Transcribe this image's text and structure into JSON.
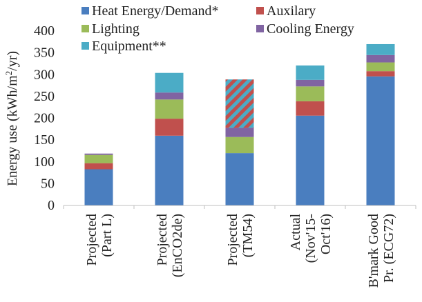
{
  "chart_data": {
    "type": "bar",
    "stacked": true,
    "ylabel_prefix": "Energy use (kWh/m",
    "ylabel_sup": "2",
    "ylabel_suffix": "/yr)",
    "ylim": [
      0,
      400
    ],
    "yticks": [
      0,
      50,
      100,
      150,
      200,
      250,
      300,
      350,
      400
    ],
    "categories": [
      [
        "Projected",
        "(Part L)"
      ],
      [
        "Projected",
        "(EnCO2de)"
      ],
      [
        "Projected",
        "(TM54)"
      ],
      [
        "Actual",
        "(Nov'15-",
        "Oct'16)"
      ],
      [
        "B'mark Good",
        "Pr. (ECG72)"
      ]
    ],
    "series": [
      {
        "name": "Heat Energy/Demand*",
        "color": "#4a7ebf",
        "values": [
          83,
          160,
          120,
          206,
          296
        ]
      },
      {
        "name": "Auxilary",
        "color": "#c0504d",
        "values": [
          14,
          39,
          0,
          33,
          12
        ]
      },
      {
        "name": "Lighting",
        "color": "#9bbb59",
        "values": [
          19,
          44,
          37,
          34,
          20
        ]
      },
      {
        "name": "Cooling Energy",
        "color": "#8064a2",
        "values": [
          3,
          16,
          21,
          15,
          17
        ]
      },
      {
        "name": "Equipment**",
        "color": "#4bacc6",
        "values": [
          0,
          45,
          0,
          33,
          25
        ]
      }
    ],
    "hatched_segment": {
      "category_index": 2,
      "base": 178,
      "top": 289,
      "colors": [
        "#4bacc6",
        "#c0504d"
      ]
    },
    "legend_position": "top",
    "grid": false
  }
}
